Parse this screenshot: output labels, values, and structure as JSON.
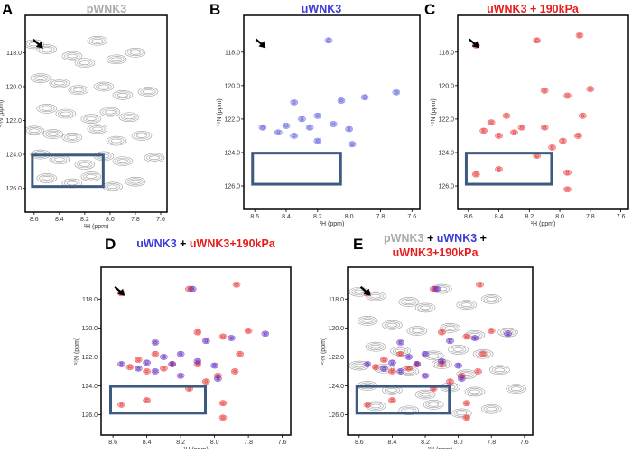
{
  "chart_data": [
    {
      "type": "contour",
      "label": "A",
      "title_lines": [
        [
          {
            "text": "pWNK3",
            "color": "#aaaaaa"
          }
        ]
      ],
      "xlabel": "¹H (ppm)",
      "ylabel": "¹⁵N (ppm)",
      "xlim": [
        8.67,
        7.55
      ],
      "ylim": [
        115.8,
        127.4
      ],
      "xticks": [
        8.6,
        8.4,
        8.2,
        {
          "value": 8,
          "label": "8.0"
        },
        7.8,
        7.6
      ],
      "yticks": [
        {
          "value": 118,
          "label": "118.0"
        },
        {
          "value": 120,
          "label": "120.0"
        },
        {
          "value": 122,
          "label": "122.0"
        },
        {
          "value": 124,
          "label": "124.0"
        },
        {
          "value": 126,
          "label": "126.0"
        }
      ],
      "series": [
        {
          "color": "#8c8c8c",
          "x": [
            8.6,
            8.5,
            8.3,
            8.2,
            8.1,
            7.95,
            7.8,
            8.55,
            8.4,
            8.25,
            8.05,
            7.9,
            7.7,
            8.5,
            8.35,
            8.15,
            8.0,
            7.85,
            8.6,
            8.45,
            8.3,
            8.1,
            7.95,
            7.75,
            8.55,
            8.4,
            8.2,
            8.05,
            7.9,
            7.65,
            8.5,
            8.3,
            8.15,
            7.98,
            7.8
          ],
          "y": [
            117.5,
            117.8,
            118.2,
            118.6,
            117.3,
            118.4,
            118.0,
            119.5,
            119.8,
            120.2,
            120.0,
            120.5,
            120.3,
            121.3,
            121.6,
            121.9,
            121.5,
            121.8,
            122.6,
            122.8,
            123.0,
            122.5,
            123.2,
            122.9,
            124.0,
            124.3,
            124.6,
            124.1,
            124.4,
            124.2,
            125.4,
            125.7,
            125.3,
            125.9,
            125.6
          ]
        }
      ]
    },
    {
      "type": "contour",
      "label": "B",
      "title_lines": [
        [
          {
            "text": "uWNK3",
            "color": "#3b3bd6"
          }
        ]
      ],
      "xlabel": "¹H (ppm)",
      "ylabel": "¹⁵N (ppm)",
      "xlim": [
        8.67,
        7.55
      ],
      "ylim": [
        115.8,
        127.4
      ],
      "xticks": [
        8.6,
        8.4,
        8.2,
        {
          "value": 8,
          "label": "8.0"
        },
        7.8,
        7.6
      ],
      "yticks": [
        {
          "value": 118,
          "label": "118.0"
        },
        {
          "value": 120,
          "label": "120.0"
        },
        {
          "value": 122,
          "label": "122.0"
        },
        {
          "value": 124,
          "label": "124.0"
        },
        {
          "value": 126,
          "label": "126.0"
        }
      ],
      "series": [
        {
          "color": "#5555e0",
          "x": [
            8.13,
            8.35,
            8.05,
            7.9,
            8.3,
            8.4,
            8.25,
            8.2,
            8.45,
            8.35,
            8.1,
            8.0,
            7.98,
            8.2,
            8.55,
            7.7
          ],
          "y": [
            117.3,
            121.0,
            120.9,
            120.7,
            122.0,
            122.4,
            122.5,
            121.8,
            122.8,
            123.0,
            122.3,
            122.6,
            123.5,
            123.3,
            122.5,
            120.4
          ]
        }
      ]
    },
    {
      "type": "contour",
      "label": "C",
      "title_lines": [
        [
          {
            "text": "uWNK3 + 190kPa",
            "color": "#e81c1c"
          }
        ]
      ],
      "xlabel": "¹H (ppm)",
      "ylabel": "¹⁵N (ppm)",
      "xlim": [
        8.67,
        7.55
      ],
      "ylim": [
        115.8,
        127.4
      ],
      "xticks": [
        8.6,
        8.4,
        8.2,
        {
          "value": 8,
          "label": "8.0"
        },
        7.8,
        7.6
      ],
      "yticks": [
        {
          "value": 118,
          "label": "118.0"
        },
        {
          "value": 120,
          "label": "120.0"
        },
        {
          "value": 122,
          "label": "122.0"
        },
        {
          "value": 124,
          "label": "124.0"
        },
        {
          "value": 126,
          "label": "126.0"
        }
      ],
      "series": [
        {
          "color": "#e82a2a",
          "x": [
            8.55,
            8.15,
            7.87,
            8.1,
            7.95,
            7.8,
            7.85,
            8.45,
            8.35,
            8.25,
            8.4,
            8.3,
            8.1,
            7.98,
            8.05,
            7.88,
            8.15,
            7.95,
            8.55,
            8.4,
            7.95,
            8.5
          ],
          "y": [
            117.6,
            117.3,
            117.0,
            120.3,
            120.6,
            120.2,
            121.8,
            122.2,
            121.8,
            122.5,
            123.0,
            122.8,
            122.5,
            123.3,
            123.7,
            123.0,
            124.2,
            125.2,
            125.3,
            125.0,
            126.2,
            122.7
          ]
        }
      ]
    },
    {
      "type": "contour",
      "label": "D",
      "title_lines": [
        [
          {
            "text": "uWNK3",
            "color": "#3b3bd6"
          },
          {
            "text": " + ",
            "color": "#000000"
          },
          {
            "text": "uWNK3+190kPa",
            "color": "#e81c1c"
          }
        ]
      ],
      "xlabel": "¹H (ppm)",
      "ylabel": "¹⁵N (ppm)",
      "xlim": [
        8.67,
        7.55
      ],
      "ylim": [
        115.8,
        127.4
      ],
      "xticks": [
        8.6,
        8.4,
        8.2,
        {
          "value": 8,
          "label": "8.0"
        },
        7.8,
        7.6
      ],
      "yticks": [
        {
          "value": 118,
          "label": "118.0"
        },
        {
          "value": 120,
          "label": "120.0"
        },
        {
          "value": 122,
          "label": "122.0"
        },
        {
          "value": 124,
          "label": "124.0"
        },
        {
          "value": 126,
          "label": "126.0"
        }
      ],
      "series": [
        {
          "color": "#e82a2a",
          "x": [
            8.55,
            8.15,
            7.87,
            8.1,
            7.95,
            7.8,
            7.85,
            8.45,
            8.35,
            8.25,
            8.4,
            8.3,
            8.1,
            7.98,
            8.05,
            7.88,
            8.15,
            7.95,
            8.55,
            8.4,
            7.95,
            8.5
          ],
          "y": [
            117.6,
            117.3,
            117.0,
            120.3,
            120.6,
            120.2,
            121.8,
            122.2,
            121.8,
            122.5,
            123.0,
            122.8,
            122.5,
            123.3,
            123.7,
            123.0,
            124.2,
            125.2,
            125.3,
            125.0,
            126.2,
            122.7
          ]
        },
        {
          "color": "#5a1fc0",
          "x": [
            8.13,
            8.35,
            8.05,
            7.9,
            8.3,
            8.4,
            8.25,
            8.2,
            8.45,
            8.35,
            8.1,
            8.0,
            7.98,
            8.2,
            8.55,
            7.7
          ],
          "y": [
            117.3,
            121.0,
            120.9,
            120.7,
            122.0,
            122.4,
            122.5,
            121.8,
            122.8,
            123.0,
            122.3,
            122.6,
            123.5,
            123.3,
            122.5,
            120.4
          ]
        }
      ]
    },
    {
      "type": "contour",
      "label": "E",
      "title_lines": [
        [
          {
            "text": "pWNK3",
            "color": "#aaaaaa"
          },
          {
            "text": " + ",
            "color": "#000000"
          },
          {
            "text": "uWNK3",
            "color": "#3b3bd6"
          },
          {
            "text": " +",
            "color": "#000000"
          }
        ],
        [
          {
            "text": "uWNK3+190kPa",
            "color": "#e81c1c"
          }
        ]
      ],
      "xlabel": "¹H (ppm)",
      "ylabel": "¹⁵N (ppm)",
      "xlim": [
        8.67,
        7.55
      ],
      "ylim": [
        115.8,
        127.4
      ],
      "xticks": [
        8.6,
        8.4,
        8.2,
        {
          "value": 8,
          "label": "8.0"
        },
        7.8,
        7.6
      ],
      "yticks": [
        {
          "value": 118,
          "label": "118.0"
        },
        {
          "value": 120,
          "label": "120.0"
        },
        {
          "value": 122,
          "label": "122.0"
        },
        {
          "value": 124,
          "label": "124.0"
        },
        {
          "value": 126,
          "label": "126.0"
        }
      ],
      "series": [
        {
          "color": "#8c8c8c",
          "x": [
            8.6,
            8.5,
            8.3,
            8.2,
            8.1,
            7.95,
            7.8,
            8.55,
            8.4,
            8.25,
            8.05,
            7.9,
            7.7,
            8.5,
            8.35,
            8.15,
            8.0,
            7.85,
            8.6,
            8.45,
            8.3,
            8.1,
            7.95,
            7.75,
            8.55,
            8.4,
            8.2,
            8.05,
            7.9,
            7.65,
            8.5,
            8.3,
            8.15,
            7.98,
            7.8
          ],
          "y": [
            117.5,
            117.8,
            118.2,
            118.6,
            117.3,
            118.4,
            118.0,
            119.5,
            119.8,
            120.2,
            120.0,
            120.5,
            120.3,
            121.3,
            121.6,
            121.9,
            121.5,
            121.8,
            122.6,
            122.8,
            123.0,
            122.5,
            123.2,
            122.9,
            124.0,
            124.3,
            124.6,
            124.1,
            124.4,
            124.2,
            125.4,
            125.7,
            125.3,
            125.9,
            125.6
          ]
        },
        {
          "color": "#e82a2a",
          "x": [
            8.55,
            8.15,
            7.87,
            8.1,
            7.95,
            7.8,
            7.85,
            8.45,
            8.35,
            8.25,
            8.4,
            8.3,
            8.1,
            7.98,
            8.05,
            7.88,
            8.15,
            7.95,
            8.55,
            8.4,
            7.95,
            8.5
          ],
          "y": [
            117.6,
            117.3,
            117.0,
            120.3,
            120.6,
            120.2,
            121.8,
            122.2,
            121.8,
            122.5,
            123.0,
            122.8,
            122.5,
            123.3,
            123.7,
            123.0,
            124.2,
            125.2,
            125.3,
            125.0,
            126.2,
            122.7
          ]
        },
        {
          "color": "#5a1fc0",
          "x": [
            8.13,
            8.35,
            8.05,
            7.9,
            8.3,
            8.4,
            8.25,
            8.2,
            8.45,
            8.35,
            8.1,
            8.0,
            7.98,
            8.2,
            8.55,
            7.7
          ],
          "y": [
            117.3,
            121.0,
            120.9,
            120.7,
            122.0,
            122.4,
            122.5,
            121.8,
            122.8,
            123.0,
            122.3,
            122.6,
            123.5,
            123.3,
            122.5,
            120.4
          ]
        }
      ]
    }
  ]
}
